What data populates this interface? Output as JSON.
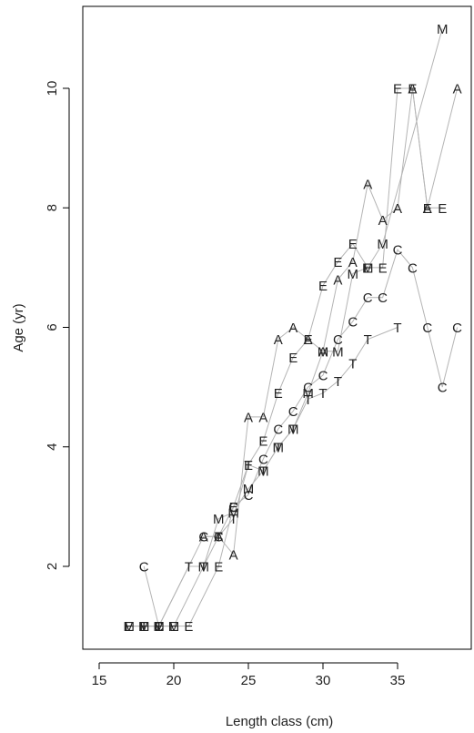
{
  "chart_data": {
    "type": "line",
    "title": "",
    "xlabel": "Length class (cm)",
    "ylabel": "Age (yr)",
    "xlim": [
      14,
      40
    ],
    "ylim": [
      0.5,
      11.5
    ],
    "xticks": [
      15,
      20,
      25,
      30,
      35
    ],
    "yticks": [
      2,
      4,
      6,
      8,
      10
    ],
    "grid": false,
    "legend": "none",
    "line_color": "#b4b4b4",
    "series": [
      {
        "name": "C",
        "x": [
          18,
          19,
          22,
          23,
          24,
          25,
          26,
          27,
          28,
          29,
          30,
          31,
          32,
          33,
          34,
          35,
          36,
          37,
          38,
          39
        ],
        "y": [
          2,
          1,
          2.5,
          2.5,
          3,
          3.2,
          3.8,
          4.3,
          4.6,
          5,
          5.2,
          5.8,
          6.1,
          6.5,
          6.5,
          7.3,
          7,
          6,
          5,
          6
        ]
      },
      {
        "name": "T",
        "x": [
          18,
          19,
          21,
          22,
          23,
          24,
          25,
          26,
          27,
          28,
          29,
          30,
          31,
          32,
          33,
          35
        ],
        "y": [
          1,
          1,
          2,
          2,
          2.5,
          2.8,
          3.7,
          3.6,
          4,
          4.3,
          4.8,
          4.9,
          5.1,
          5.4,
          5.8,
          6
        ]
      },
      {
        "name": "M",
        "x": [
          17,
          18,
          19,
          20,
          22,
          23,
          24,
          25,
          26,
          27,
          28,
          29,
          30,
          31,
          32,
          33,
          34,
          38
        ],
        "y": [
          1,
          1,
          1,
          1,
          2,
          2.8,
          2.9,
          3.3,
          3.6,
          4,
          4.3,
          4.9,
          5.6,
          5.6,
          6.9,
          7,
          7.4,
          11
        ]
      },
      {
        "name": "A",
        "x": [
          22,
          23,
          24,
          25,
          26,
          27,
          28,
          29,
          30,
          31,
          32,
          33,
          34,
          35,
          36,
          37,
          39
        ],
        "y": [
          2.5,
          2.5,
          2.2,
          4.5,
          4.5,
          5.8,
          6,
          5.8,
          5.6,
          6.8,
          7.1,
          8.4,
          7.8,
          8,
          10,
          8,
          10
        ]
      },
      {
        "name": "E",
        "x": [
          17,
          18,
          19,
          20,
          21,
          23,
          24,
          25,
          26,
          27,
          28,
          29,
          30,
          31,
          32,
          33,
          34,
          35,
          36,
          37,
          38
        ],
        "y": [
          1,
          1,
          1,
          1,
          1,
          2,
          3,
          3.7,
          4.1,
          4.9,
          5.5,
          5.8,
          6.7,
          7.1,
          7.4,
          7,
          7,
          10,
          10,
          8,
          8
        ]
      }
    ]
  }
}
